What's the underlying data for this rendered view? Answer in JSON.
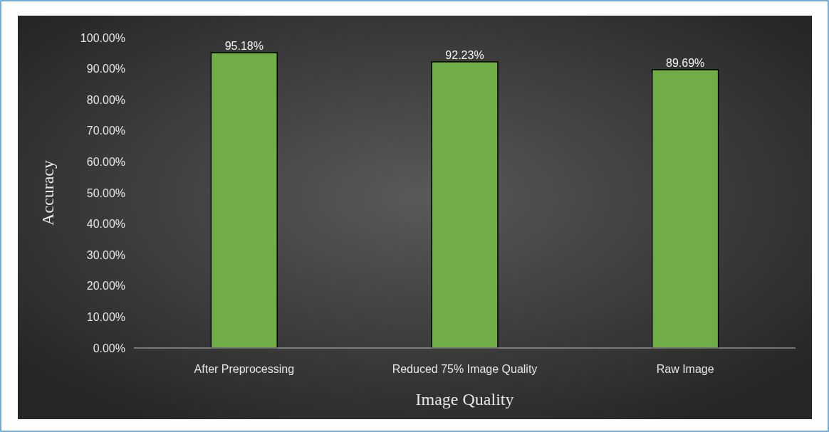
{
  "chart_data": {
    "type": "bar",
    "xlabel": "Image Quality",
    "ylabel": "Accuracy",
    "categories": [
      "After Preprocessing",
      "Reduced 75% Image Quality",
      "Raw Image"
    ],
    "values": [
      95.18,
      92.23,
      89.69
    ],
    "value_labels": [
      "95.18%",
      "92.23%",
      "89.69%"
    ],
    "color": "#70ad47",
    "ylim": [
      0,
      100
    ],
    "yticks": [
      {
        "value": 0,
        "label": "0.00%"
      },
      {
        "value": 10,
        "label": "10.00%"
      },
      {
        "value": 20,
        "label": "20.00%"
      },
      {
        "value": 30,
        "label": "30.00%"
      },
      {
        "value": 40,
        "label": "40.00%"
      },
      {
        "value": 50,
        "label": "50.00%"
      },
      {
        "value": 60,
        "label": "60.00%"
      },
      {
        "value": 70,
        "label": "70.00%"
      },
      {
        "value": 80,
        "label": "80.00%"
      },
      {
        "value": 90,
        "label": "90.00%"
      },
      {
        "value": 100,
        "label": "100.00%"
      }
    ],
    "grid": false
  }
}
